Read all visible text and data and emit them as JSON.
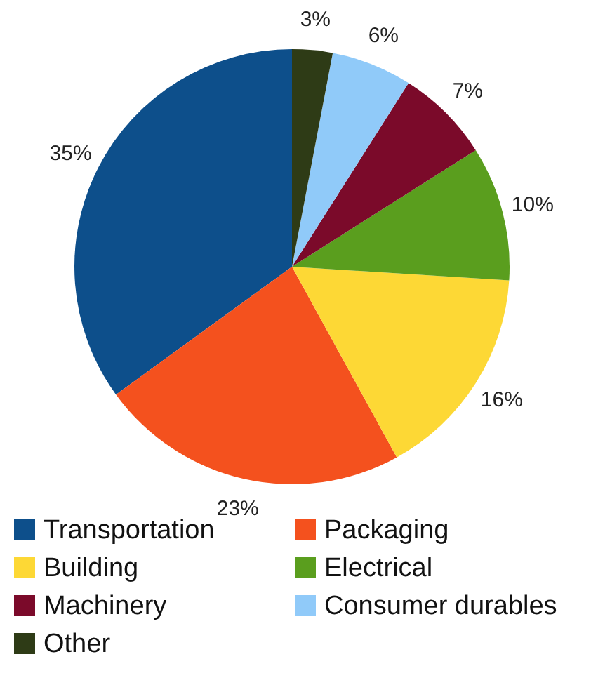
{
  "chart_data": {
    "type": "pie",
    "categories": [
      "Transportation",
      "Packaging",
      "Building",
      "Electrical",
      "Machinery",
      "Consumer durables",
      "Other"
    ],
    "values": [
      35,
      23,
      16,
      10,
      7,
      6,
      3
    ],
    "colors": [
      "#0d4f8b",
      "#f4511e",
      "#fdd835",
      "#5a9e1e",
      "#7b0a2a",
      "#90caf9",
      "#2e3b16"
    ],
    "value_labels": [
      "35%",
      "23%",
      "16%",
      "10%",
      "7%",
      "6%",
      "3%"
    ],
    "legend": "bottom"
  }
}
